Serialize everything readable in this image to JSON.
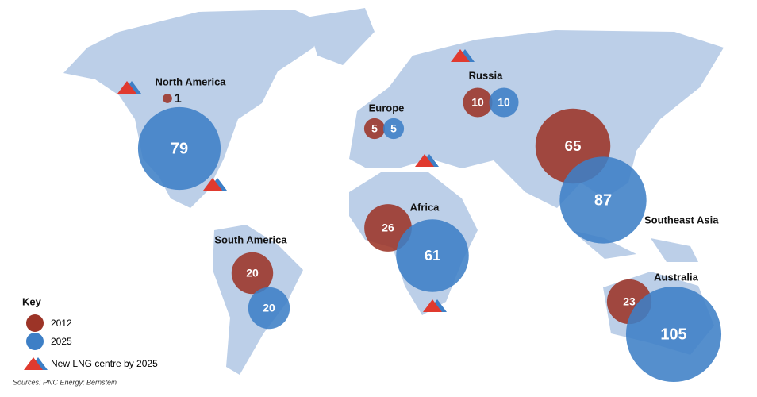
{
  "regions": [
    {
      "name": "North America",
      "v2012": 1,
      "v2025": 79
    },
    {
      "name": "Europe",
      "v2012": 5,
      "v2025": 5
    },
    {
      "name": "Russia",
      "v2012": 10,
      "v2025": 10
    },
    {
      "name": "Southeast Asia",
      "v2012": 65,
      "v2025": 87
    },
    {
      "name": "Africa",
      "v2012": 26,
      "v2025": 61
    },
    {
      "name": "South America",
      "v2012": 20,
      "v2025": 20
    },
    {
      "name": "Australia",
      "v2012": 23,
      "v2025": 105
    }
  ],
  "key": {
    "title": "Key",
    "series": [
      {
        "name": "2012",
        "color": "#9c3427"
      },
      {
        "name": "2025",
        "color": "#3d7fc6"
      }
    ],
    "lng": "New LNG centre by 2025"
  },
  "source": "Sources: PNC Energy; Bernstein"
}
